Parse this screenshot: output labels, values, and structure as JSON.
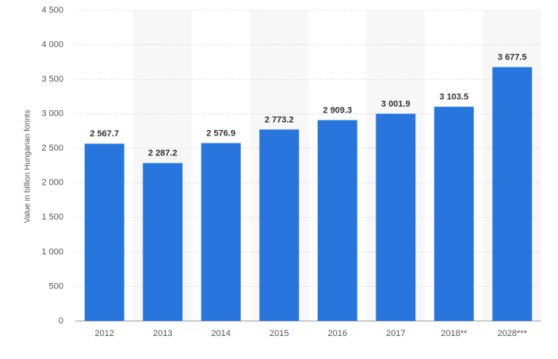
{
  "chart_data": {
    "type": "bar",
    "y_axis_label": "Value in billion Hungarian forints",
    "categories": [
      "2012",
      "2013",
      "2014",
      "2015",
      "2016",
      "2017",
      "2018**",
      "2028***"
    ],
    "values": [
      2567.7,
      2287.2,
      2576.9,
      2773.2,
      2909.3,
      3001.9,
      3103.5,
      3677.5
    ],
    "value_labels": [
      "2 567.7",
      "2 287.2",
      "2 576.9",
      "2 773.2",
      "2 909.3",
      "3 001.9",
      "3 103.5",
      "3 677.5"
    ],
    "color": "#2876dd",
    "ylim": [
      0,
      4500
    ],
    "yticks": [
      0,
      500,
      {
        "value": 1000,
        "label": "1 000"
      },
      {
        "value": 1500,
        "label": "1 500"
      },
      {
        "value": 2000,
        "label": "2 000"
      },
      {
        "value": 2500,
        "label": "2 500"
      },
      {
        "value": 3000,
        "label": "3 000"
      },
      {
        "value": 3500,
        "label": "3 500"
      },
      {
        "value": 4000,
        "label": "4 000"
      },
      {
        "value": 4500,
        "label": "4 500"
      }
    ],
    "grid": true
  }
}
